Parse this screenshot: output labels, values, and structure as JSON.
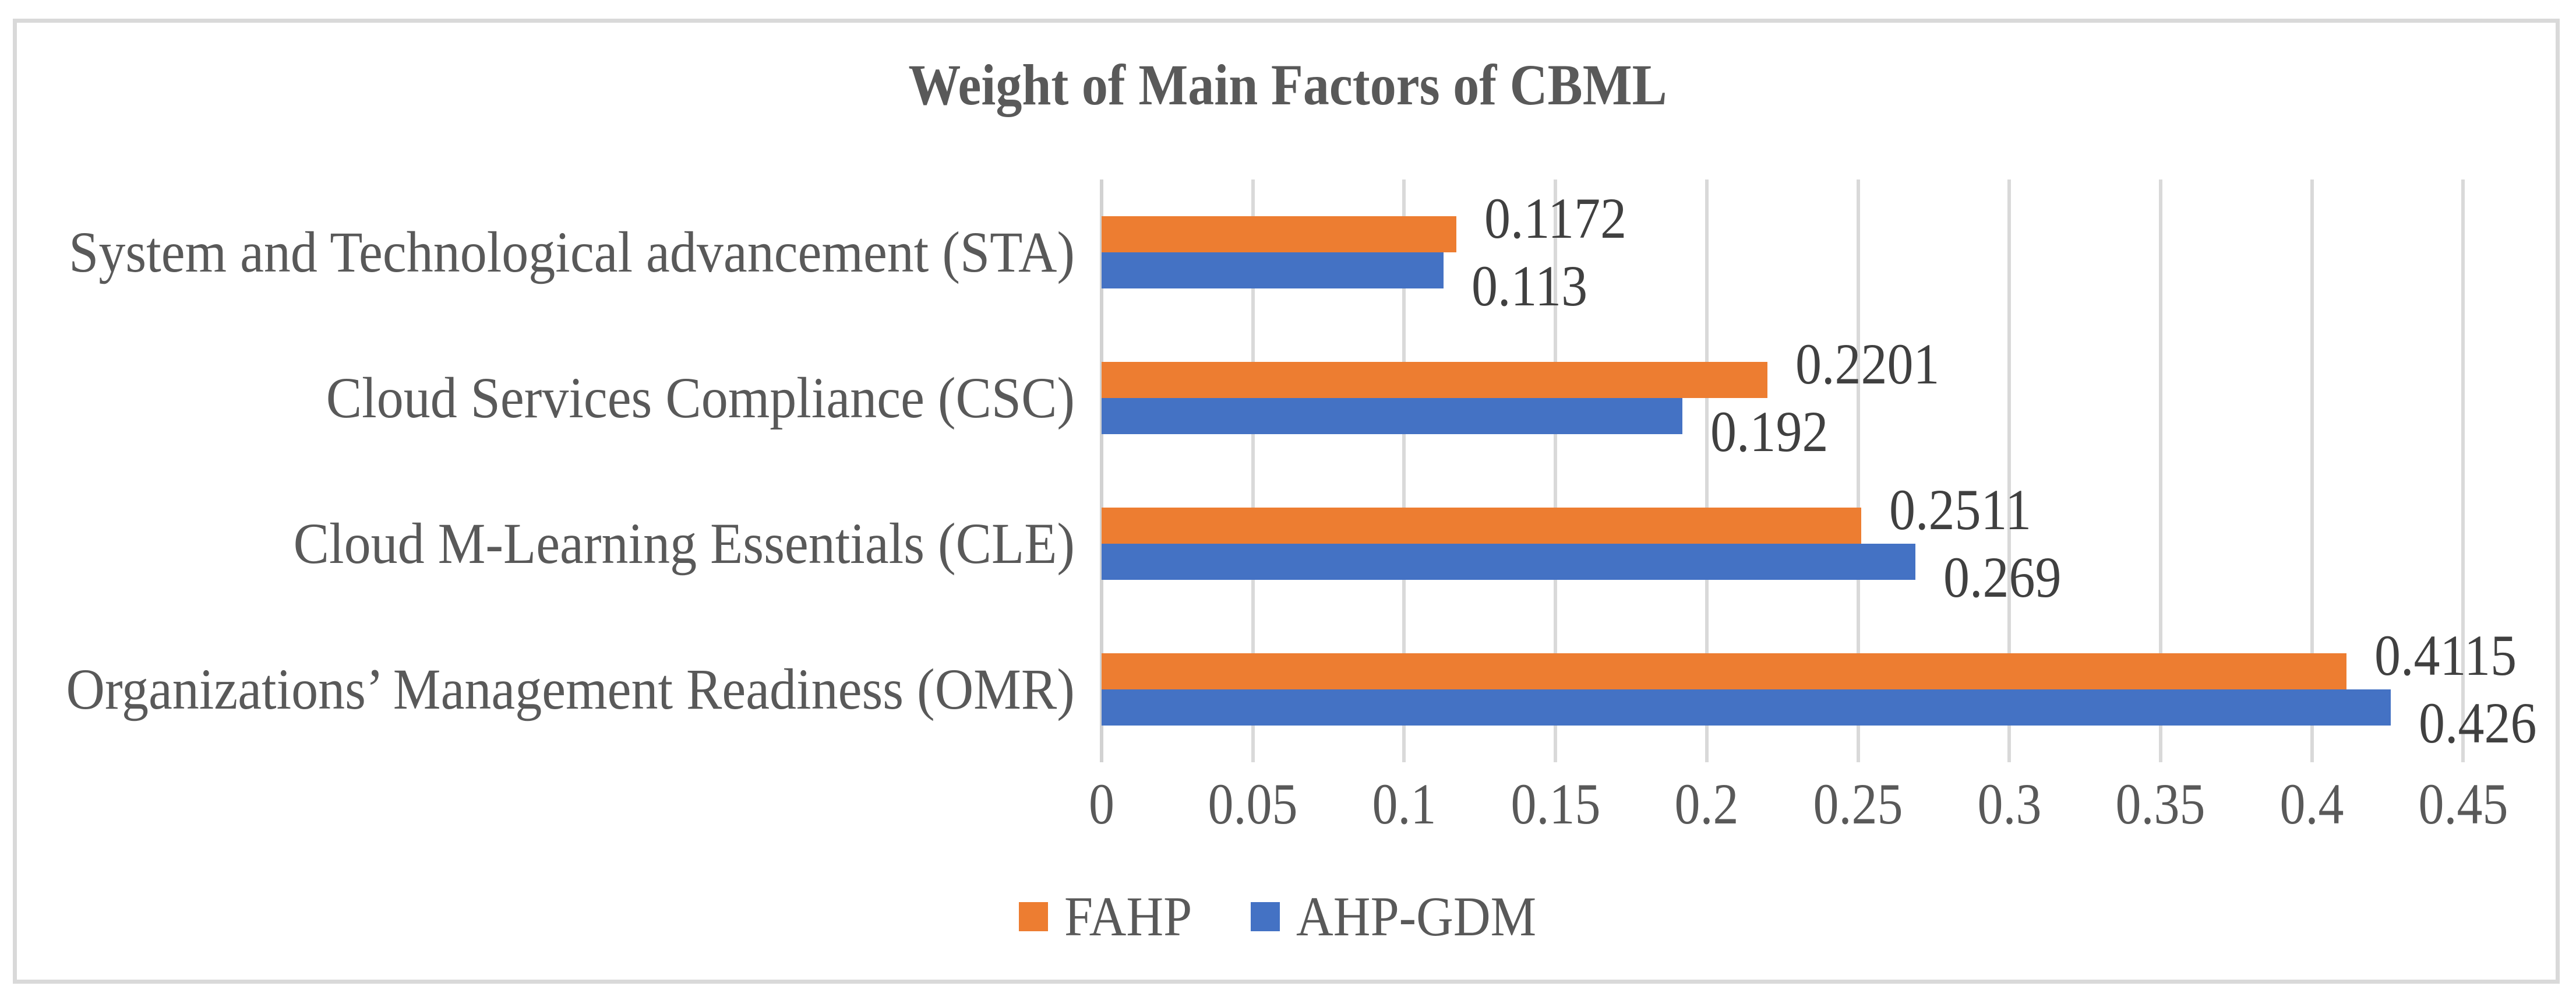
{
  "chart_data": {
    "type": "bar",
    "orientation": "horizontal",
    "title": "Weight of Main Factors of CBML",
    "categories": [
      "System and Technological advancement (STA)",
      "Cloud Services Compliance (CSC)",
      "Cloud M-Learning Essentials (CLE)",
      "Organizations’ Management Readiness (OMR)"
    ],
    "series": [
      {
        "name": "FAHP",
        "color": "#ED7D31",
        "values": [
          0.1172,
          0.2201,
          0.2511,
          0.4115
        ],
        "labels": [
          "0.1172",
          "0.2201",
          "0.2511",
          "0.4115"
        ]
      },
      {
        "name": "AHP-GDM",
        "color": "#4472C4",
        "values": [
          0.113,
          0.192,
          0.269,
          0.426
        ],
        "labels": [
          "0.113",
          "0.192",
          "0.269",
          "0.426"
        ]
      }
    ],
    "x_axis": {
      "min": 0,
      "max": 0.45,
      "step": 0.05,
      "tick_labels": [
        "0",
        "0.05",
        "0.1",
        "0.15",
        "0.2",
        "0.25",
        "0.3",
        "0.35",
        "0.4",
        "0.45"
      ]
    },
    "grid": "vertical-only",
    "legend_position": "bottom-center",
    "styles": {
      "gridline_color": "#D9D9D9",
      "axis_text_color": "#595959",
      "value_label_color": "#404040",
      "title_color": "#595959",
      "border_color": "#D9D9D9"
    }
  }
}
